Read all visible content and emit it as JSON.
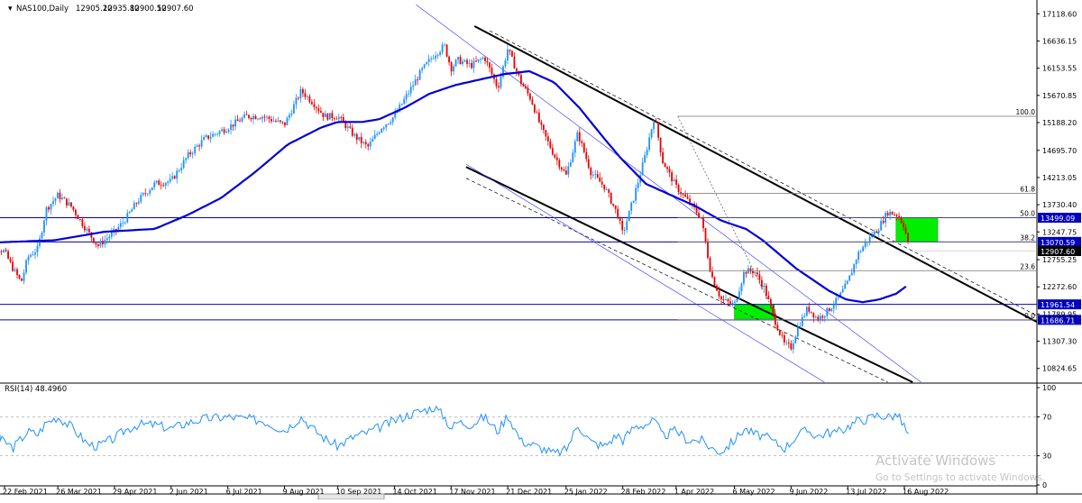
{
  "chart_data": [
    {
      "type": "line",
      "subtype": "candlestick",
      "title": "NAS100,Daily",
      "ohlc": [
        "12905.20",
        "12935.80",
        "12900.50",
        "12907.60"
      ],
      "y_ticks": [
        17118.6,
        16636.15,
        16153.55,
        15670.85,
        15188.2,
        14695.7,
        14213.05,
        13730.4,
        13247.75,
        12755.25,
        12272.6,
        11789.95,
        11307.3,
        10824.65
      ],
      "y_tick_labels": [
        "17118.60",
        "16636.15",
        "16153.55",
        "15670.85",
        "15188.20",
        "14695.70",
        "14213.05",
        "13730.40",
        "13247.75",
        "12755.25",
        "12272.60",
        "11789.95",
        "11307.30",
        "10824.65"
      ],
      "ylim": [
        10580,
        17300
      ],
      "x_tick_labels": [
        "22 Feb 2021",
        "26 Mar 2021",
        "29 Apr 2021",
        "2 Jun 2021",
        "6 Jul 2021",
        "9 Aug 2021",
        "10 Sep 2021",
        "14 Oct 2021",
        "17 Nov 2021",
        "21 Dec 2021",
        "25 Jan 2022",
        "28 Feb 2022",
        "1 Apr 2022",
        "6 May 2022",
        "9 Jun 2022",
        "13 Jul 2022",
        "16 Aug 2022"
      ],
      "x_tick_days": [
        0,
        32,
        66,
        100,
        134,
        168,
        200,
        234,
        268,
        302,
        337,
        371,
        403,
        438,
        472,
        506,
        540
      ],
      "series": [
        {
          "name": "price",
          "x": [
            -15,
            0,
            5,
            10,
            14,
            20,
            25,
            32,
            40,
            50,
            56,
            66,
            72,
            80,
            90,
            100,
            110,
            120,
            134,
            145,
            155,
            168,
            178,
            185,
            192,
            200,
            210,
            218,
            226,
            234,
            242,
            250,
            258,
            264,
            268,
            272,
            280,
            288,
            296,
            302,
            310,
            316,
            322,
            330,
            337,
            344,
            352,
            360,
            368,
            371,
            378,
            384,
            390,
            395,
            403,
            410,
            418,
            424,
            430,
            438,
            444,
            450,
            456,
            462,
            468,
            472,
            476,
            482,
            488,
            494,
            500,
            506,
            512,
            518,
            524,
            530,
            536,
            540,
            543
          ],
          "values": [
            13100,
            12900,
            12600,
            12350,
            12800,
            12950,
            13650,
            13900,
            13700,
            13250,
            13000,
            13250,
            13450,
            13800,
            14100,
            14150,
            14600,
            14900,
            15100,
            15300,
            15300,
            15150,
            15750,
            15550,
            15300,
            15300,
            14950,
            14750,
            15100,
            15300,
            15700,
            16100,
            16400,
            16550,
            16150,
            16300,
            16200,
            16350,
            15800,
            16500,
            15900,
            15600,
            15100,
            14600,
            14250,
            15000,
            14300,
            14050,
            13550,
            13200,
            13900,
            14550,
            15300,
            14500,
            14050,
            13800,
            13500,
            12500,
            12050,
            11950,
            12550,
            12550,
            12250,
            11700,
            11250,
            11200,
            11550,
            11900,
            11700,
            11850,
            12050,
            12350,
            12850,
            13100,
            13300,
            13600,
            13550,
            13350,
            12907
          ]
        },
        {
          "name": "moving average",
          "x": [
            -15,
            30,
            60,
            90,
            110,
            130,
            150,
            170,
            190,
            200,
            215,
            225,
            240,
            255,
            270,
            285,
            300,
            315,
            330,
            345,
            360,
            370,
            385,
            400,
            415,
            430,
            445,
            455,
            465,
            475,
            485,
            495,
            505,
            515,
            525,
            535,
            542
          ],
          "values": [
            13050,
            13100,
            13250,
            13300,
            13550,
            13850,
            14300,
            14800,
            15100,
            15200,
            15200,
            15250,
            15450,
            15700,
            15850,
            15950,
            16050,
            16100,
            15900,
            15450,
            14900,
            14550,
            14100,
            13900,
            13700,
            13450,
            13300,
            13100,
            12850,
            12600,
            12400,
            12200,
            12050,
            12000,
            12050,
            12150,
            12300
          ]
        }
      ],
      "levels": [
        {
          "value": 13499.09,
          "label": "13499.09"
        },
        {
          "value": 13070.59,
          "label": "13070.59"
        },
        {
          "value": 12907.6,
          "label": "12907.60"
        },
        {
          "value": 11961.54,
          "label": "11961.54"
        },
        {
          "value": 11686.71,
          "label": "11686.71"
        }
      ],
      "fibonacci": [
        {
          "label": "100.0",
          "value": 15300
        },
        {
          "label": "61.8",
          "value": 13930
        },
        {
          "label": "50.0",
          "value": 13499.09
        },
        {
          "label": "38.2",
          "value": 13070.59
        },
        {
          "label": "23.6",
          "value": 12560
        },
        {
          "label": "0.0",
          "value": 11686.71
        }
      ],
      "zones": [
        {
          "x": [
            438,
            462
          ],
          "y": [
            11700,
            11960
          ]
        },
        {
          "x": [
            535,
            560
          ],
          "y": [
            13070,
            13500
          ]
        }
      ],
      "grid": false,
      "legend": "none"
    },
    {
      "type": "line",
      "title": "RSI(14) 48.4960",
      "ylim": [
        0,
        100
      ],
      "y_tick_labels": [
        "100",
        "70",
        "30",
        "0"
      ],
      "levels": [
        70,
        30
      ],
      "series": [
        {
          "name": "RSI(14)",
          "x": [
            -15,
            0,
            5,
            14,
            20,
            25,
            32,
            40,
            50,
            56,
            66,
            72,
            80,
            90,
            100,
            110,
            120,
            134,
            145,
            155,
            168,
            178,
            185,
            192,
            200,
            210,
            218,
            226,
            234,
            242,
            250,
            258,
            264,
            268,
            272,
            280,
            288,
            296,
            302,
            310,
            316,
            322,
            330,
            337,
            344,
            352,
            360,
            368,
            371,
            378,
            384,
            390,
            395,
            403,
            410,
            418,
            424,
            430,
            438,
            444,
            450,
            456,
            462,
            468,
            472,
            476,
            482,
            488,
            494,
            500,
            506,
            512,
            518,
            524,
            530,
            536,
            540,
            543
          ],
          "values": [
            48,
            45,
            38,
            55,
            52,
            64,
            70,
            60,
            42,
            40,
            48,
            56,
            62,
            62,
            58,
            64,
            68,
            70,
            68,
            66,
            56,
            70,
            58,
            48,
            40,
            50,
            54,
            60,
            66,
            72,
            76,
            80,
            70,
            58,
            65,
            62,
            70,
            55,
            72,
            45,
            42,
            38,
            32,
            36,
            62,
            44,
            40,
            52,
            46,
            60,
            62,
            66,
            50,
            56,
            46,
            46,
            38,
            34,
            46,
            58,
            52,
            50,
            44,
            38,
            44,
            52,
            56,
            50,
            54,
            54,
            60,
            66,
            68,
            72,
            70,
            72,
            60,
            48.5
          ]
        }
      ]
    }
  ],
  "watermark": {
    "line1": "Activate Windows",
    "line2": "Go to Settings to activate Windows."
  },
  "colors": {
    "bull": "#1e90ff",
    "bear": "#e60000",
    "ma": "#0000d8",
    "level": "#0000c0",
    "zone": "#00ee00",
    "rsi": "#1e90ff"
  }
}
